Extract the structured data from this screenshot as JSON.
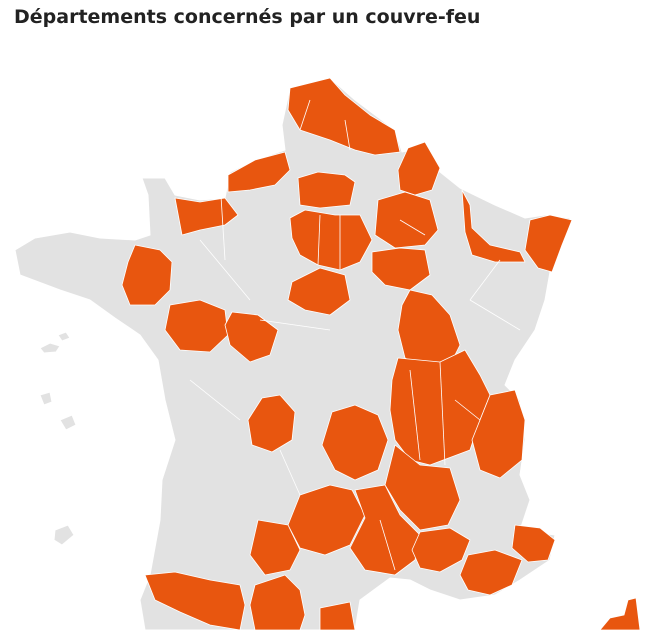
{
  "title": "Départements concernés par un couvre-feu",
  "colors": {
    "curfew": "#e8560f",
    "no_curfew": "#e2e2e2",
    "text": "#222222",
    "background": "#ffffff"
  }
}
